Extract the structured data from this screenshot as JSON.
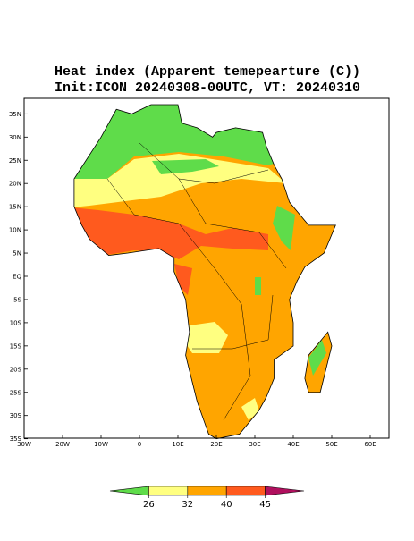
{
  "title": {
    "line1": "Heat index (Apparent temepearture (C))",
    "line2": "Init:ICON 20240308-00UTC, VT: 20240310"
  },
  "map": {
    "lat_ticks": [
      {
        "value": 35,
        "label": "35N"
      },
      {
        "value": 30,
        "label": "30N"
      },
      {
        "value": 25,
        "label": "25N"
      },
      {
        "value": 20,
        "label": "20N"
      },
      {
        "value": 15,
        "label": "15N"
      },
      {
        "value": 10,
        "label": "10N"
      },
      {
        "value": 5,
        "label": "5N"
      },
      {
        "value": 0,
        "label": "EQ"
      },
      {
        "value": -5,
        "label": "5S"
      },
      {
        "value": -10,
        "label": "10S"
      },
      {
        "value": -15,
        "label": "15S"
      },
      {
        "value": -20,
        "label": "20S"
      },
      {
        "value": -25,
        "label": "25S"
      },
      {
        "value": -30,
        "label": "30S"
      },
      {
        "value": -35,
        "label": "35S"
      }
    ],
    "lon_ticks": [
      {
        "value": -30,
        "label": "30W"
      },
      {
        "value": -20,
        "label": "20W"
      },
      {
        "value": -10,
        "label": "10W"
      },
      0,
      {
        "value": 10,
        "label": "10E"
      },
      {
        "value": 20,
        "label": "20E"
      },
      {
        "value": 30,
        "label": "30E"
      },
      {
        "value": 40,
        "label": "40E"
      },
      {
        "value": 50,
        "label": "50E"
      },
      {
        "value": 60,
        "label": "60E"
      }
    ]
  },
  "colorbar": {
    "ticks": [
      26,
      32,
      40,
      45
    ],
    "colors": [
      "#5fdc4a",
      "#ffff80",
      "#ffa500",
      "#ff5a1e",
      "#b0105e"
    ]
  }
}
